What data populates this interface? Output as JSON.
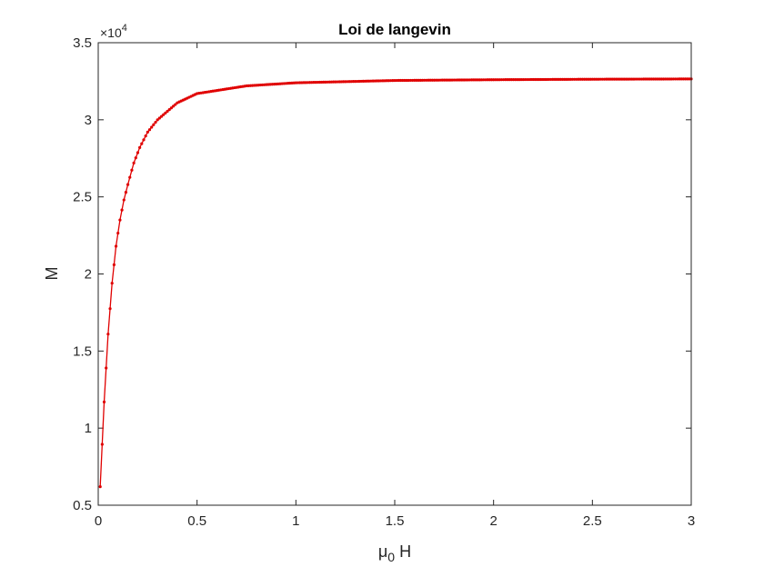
{
  "chart_data": {
    "type": "line",
    "title": "Loi de langevin",
    "xlabel": {
      "base": "μ",
      "sub": "0",
      "rest": " H"
    },
    "ylabel": "M",
    "y_exponent": {
      "base": "×10",
      "power": "4"
    },
    "xlim": [
      0,
      3
    ],
    "ylim": [
      0.5,
      3.5
    ],
    "x_ticks": [
      0,
      0.5,
      1,
      1.5,
      2,
      2.5,
      3
    ],
    "x_tick_labels": [
      "0",
      "0.5",
      "1",
      "1.5",
      "2",
      "2.5",
      "3"
    ],
    "y_ticks": [
      0.5,
      1,
      1.5,
      2,
      2.5,
      3,
      3.5
    ],
    "y_tick_labels": [
      "0.5",
      "1",
      "1.5",
      "2",
      "2.5",
      "3",
      "3.5"
    ],
    "grid": false,
    "series": [
      {
        "color": "#e00000",
        "marker": "dot",
        "x": [
          0.01,
          0.03,
          0.05,
          0.07,
          0.09,
          0.11,
          0.13,
          0.15,
          0.18,
          0.21,
          0.25,
          0.3,
          0.4,
          0.5,
          0.75,
          1,
          1.5,
          2,
          2.5,
          3
        ],
        "y": [
          0.62,
          1.17,
          1.61,
          1.94,
          2.18,
          2.35,
          2.48,
          2.58,
          2.72,
          2.82,
          2.92,
          3.0,
          3.11,
          3.17,
          3.22,
          3.24,
          3.255,
          3.26,
          3.263,
          3.265
        ]
      }
    ]
  }
}
